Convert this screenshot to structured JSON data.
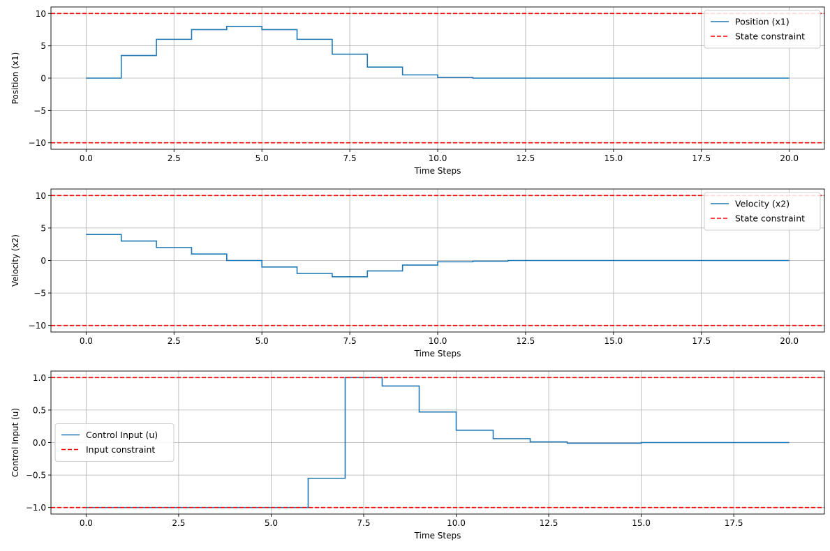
{
  "colors": {
    "series": "#1f77b4",
    "constraint": "#ff0000",
    "grid": "#b0b0b0",
    "axes": "#000000",
    "legend_border": "#cccccc"
  },
  "chart_data": [
    {
      "type": "line",
      "step": "post",
      "xlabel": "Time Steps",
      "ylabel": "Position (x1)",
      "xlim": [
        -1,
        21
      ],
      "ylim": [
        -11,
        11
      ],
      "xticks": [
        0,
        2.5,
        5,
        7.5,
        10,
        12.5,
        15,
        17.5,
        20
      ],
      "xtick_labels": [
        "0.0",
        "2.5",
        "5.0",
        "7.5",
        "10.0",
        "12.5",
        "15.0",
        "17.5",
        "20.0"
      ],
      "yticks": [
        -10,
        -5,
        0,
        5,
        10
      ],
      "ytick_labels": [
        "−10",
        "−5",
        "0",
        "5",
        "10"
      ],
      "grid": true,
      "legend_position": "upper-right",
      "series": [
        {
          "name": "Position (x1)",
          "style": "solid",
          "x": [
            0,
            1,
            2,
            3,
            4,
            5,
            6,
            7,
            8,
            9,
            10,
            11,
            12,
            13,
            14,
            15,
            16,
            17,
            18,
            19,
            20
          ],
          "values": [
            0,
            3.5,
            6,
            7.5,
            8,
            7.5,
            6,
            3.7,
            1.7,
            0.5,
            0.1,
            0,
            0,
            0,
            0,
            0,
            0,
            0,
            0,
            0,
            0
          ]
        }
      ],
      "hlines": [
        {
          "name": "State constraint",
          "y": 10,
          "style": "dashed"
        },
        {
          "name": "",
          "y": -10,
          "style": "dashed"
        }
      ]
    },
    {
      "type": "line",
      "step": "post",
      "xlabel": "Time Steps",
      "ylabel": "Velocity (x2)",
      "xlim": [
        -1,
        21
      ],
      "ylim": [
        -11,
        11
      ],
      "xticks": [
        0,
        2.5,
        5,
        7.5,
        10,
        12.5,
        15,
        17.5,
        20
      ],
      "xtick_labels": [
        "0.0",
        "2.5",
        "5.0",
        "7.5",
        "10.0",
        "12.5",
        "15.0",
        "17.5",
        "20.0"
      ],
      "yticks": [
        -10,
        -5,
        0,
        5,
        10
      ],
      "ytick_labels": [
        "−10",
        "−5",
        "0",
        "5",
        "10"
      ],
      "grid": true,
      "legend_position": "upper-right",
      "series": [
        {
          "name": "Velocity (x2)",
          "style": "solid",
          "x": [
            0,
            1,
            2,
            3,
            4,
            5,
            6,
            7,
            8,
            9,
            10,
            11,
            12,
            13,
            14,
            15,
            16,
            17,
            18,
            19,
            20
          ],
          "values": [
            4,
            3,
            2,
            1,
            0,
            -1,
            -2,
            -2.5,
            -1.6,
            -0.7,
            -0.2,
            -0.1,
            0,
            0,
            0,
            0,
            0,
            0,
            0,
            0,
            0
          ]
        }
      ],
      "hlines": [
        {
          "name": "State constraint",
          "y": 10,
          "style": "dashed"
        },
        {
          "name": "",
          "y": -10,
          "style": "dashed"
        }
      ]
    },
    {
      "type": "line",
      "step": "post",
      "xlabel": "Time Steps",
      "ylabel": "Control Input (u)",
      "xlim": [
        -0.95,
        19.95
      ],
      "ylim": [
        -1.1,
        1.1
      ],
      "xticks": [
        0,
        2.5,
        5,
        7.5,
        10,
        12.5,
        15,
        17.5
      ],
      "xtick_labels": [
        "0.0",
        "2.5",
        "5.0",
        "7.5",
        "10.0",
        "12.5",
        "15.0",
        "17.5"
      ],
      "yticks": [
        -1,
        -0.5,
        0,
        0.5,
        1
      ],
      "ytick_labels": [
        "−1.0",
        "−0.5",
        "0.0",
        "0.5",
        "1.0"
      ],
      "grid": true,
      "legend_position": "center-left",
      "series": [
        {
          "name": "Control Input (u)",
          "style": "solid",
          "x": [
            0,
            1,
            2,
            3,
            4,
            5,
            6,
            7,
            8,
            9,
            10,
            11,
            12,
            13,
            14,
            15,
            16,
            17,
            18,
            19
          ],
          "values": [
            -1,
            -1,
            -1,
            -1,
            -1,
            -1,
            -0.55,
            1,
            0.87,
            0.47,
            0.19,
            0.06,
            0.01,
            -0.01,
            -0.01,
            0,
            0,
            0,
            0,
            0
          ]
        }
      ],
      "hlines": [
        {
          "name": "Input constraint",
          "y": 1,
          "style": "dashed"
        },
        {
          "name": "",
          "y": -1,
          "style": "dashed"
        }
      ]
    }
  ]
}
